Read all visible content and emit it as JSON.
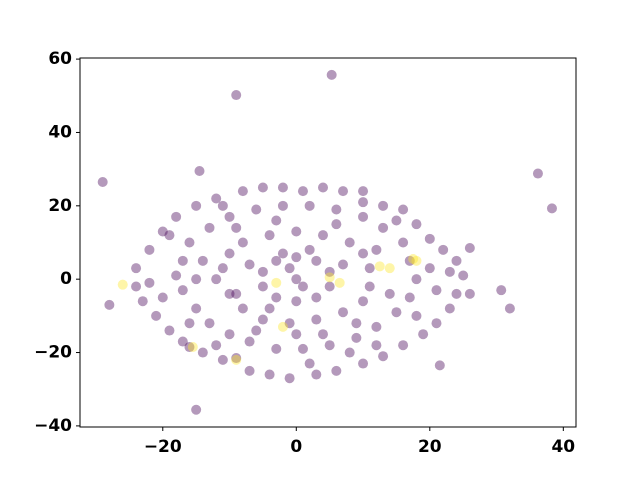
{
  "chart_data": {
    "type": "scatter",
    "alpha": 0.4,
    "xlim": [
      -32.4,
      41.9
    ],
    "ylim": [
      -40.3,
      60.3
    ],
    "xticks": [
      {
        "value": -20,
        "label": "−20"
      },
      0,
      20,
      40
    ],
    "yticks": [
      {
        "value": -40,
        "label": "−40"
      },
      {
        "value": -20,
        "label": "−20"
      },
      0,
      20,
      40,
      60
    ],
    "series": [
      {
        "color": "#440154",
        "x": [
          -22,
          -20,
          -18,
          -15,
          -12,
          -8,
          -5,
          -2,
          1,
          4,
          7,
          10,
          13,
          16,
          18,
          20,
          22,
          24,
          25,
          24,
          23,
          21,
          19,
          16,
          13,
          10,
          6,
          3,
          -1,
          -4,
          -7,
          -11,
          -14,
          -17,
          -19,
          -21,
          -23,
          -24,
          -24,
          -17,
          -16,
          -13,
          -10,
          -6,
          -2,
          2,
          6,
          10,
          13,
          16,
          17,
          18,
          17,
          15,
          12,
          9,
          5,
          1,
          -3,
          -7,
          -10,
          -13,
          -15,
          -17,
          -18,
          -11,
          -10,
          -8,
          -4,
          0,
          4,
          8,
          10,
          11,
          11,
          10,
          7,
          3,
          -1,
          -5,
          -8,
          -10,
          -12,
          -5,
          -3,
          0,
          3,
          5,
          5,
          3,
          0,
          -3,
          -5,
          0,
          -2,
          2,
          -1,
          1,
          -20,
          -15,
          -9,
          -6,
          8,
          14,
          20,
          -3,
          6,
          -12,
          12,
          -19,
          21,
          9,
          -7,
          4,
          15,
          -14,
          23,
          -22,
          2,
          -9,
          7,
          18,
          -4,
          12,
          -16,
          10,
          -11,
          0,
          5.3,
          -9,
          -14.5,
          -29,
          36.2,
          38.3,
          30.7,
          32,
          -15,
          -28,
          21.5,
          -16,
          -9,
          26,
          26
        ],
        "y": [
          8,
          13,
          17,
          20,
          22,
          24,
          25,
          25,
          24,
          25,
          24,
          24,
          20,
          19,
          15,
          11,
          8,
          5,
          1,
          -4,
          -8,
          -12,
          -15,
          -18,
          -21,
          -23,
          -25,
          -26,
          -27,
          -26,
          -25,
          -22,
          -20,
          -17,
          -14,
          -10,
          -6,
          -2,
          3,
          5,
          10,
          14,
          17,
          19,
          20,
          20,
          19,
          17,
          14,
          10,
          5,
          0,
          -5,
          -9,
          -13,
          -16,
          -18,
          -19,
          -19,
          -17,
          -15,
          -12,
          -8,
          -3,
          1,
          3,
          7,
          10,
          12,
          13,
          12,
          10,
          7,
          3,
          -2,
          -6,
          -9,
          -11,
          -12,
          -11,
          -8,
          -4,
          0,
          2,
          5,
          6,
          5,
          2,
          -2,
          -5,
          -6,
          -5,
          -2,
          0,
          7,
          8,
          3,
          -2,
          -5,
          0,
          14,
          -14,
          -20,
          -4,
          3,
          16,
          15,
          -18,
          8,
          12,
          -3,
          -12,
          4,
          -15,
          16,
          5,
          2,
          -1,
          -23,
          -4,
          4,
          -10,
          -8,
          -18,
          -12,
          21,
          20,
          -15,
          55.7,
          50.2,
          29.5,
          26.5,
          28.8,
          19.3,
          -3,
          -8,
          -35.6,
          -7,
          -23.5,
          -18.5,
          -21.5,
          8.5,
          -4
        ]
      },
      {
        "color": "#fde725",
        "x": [
          -26,
          -3,
          -2,
          5,
          6.5,
          12.5,
          14,
          18,
          17.5,
          -15.5,
          -9
        ],
        "y": [
          -1.5,
          -1,
          -13,
          0.5,
          -1,
          3.5,
          3,
          5,
          5.5,
          -18.5,
          -22
        ]
      }
    ]
  }
}
